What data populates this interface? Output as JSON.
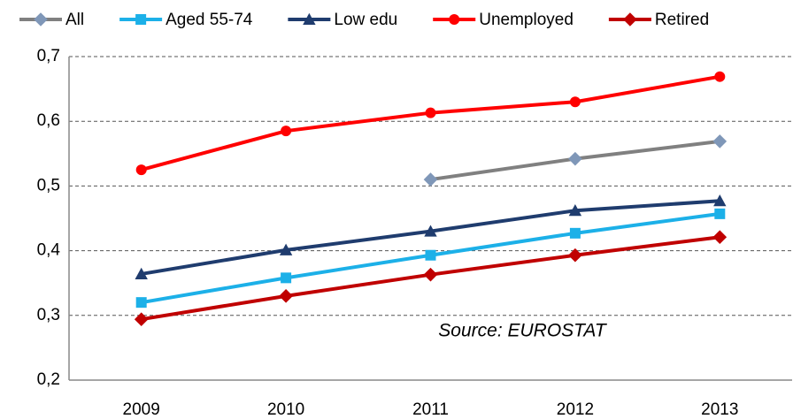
{
  "chart_data": {
    "type": "line",
    "categories": [
      "2009",
      "2010",
      "2011",
      "2012",
      "2013"
    ],
    "series": [
      {
        "name": "All",
        "color": "#808080",
        "marker": "diamond",
        "marker_color": "#7f97b8",
        "values": [
          null,
          null,
          0.51,
          0.542,
          0.569
        ]
      },
      {
        "name": "Aged 55-74",
        "color": "#1cb0e8",
        "marker": "square",
        "marker_color": "#1cb0e8",
        "values": [
          0.32,
          0.358,
          0.393,
          0.427,
          0.457
        ]
      },
      {
        "name": "Low edu",
        "color": "#1f3c6e",
        "marker": "triangle",
        "marker_color": "#1f3c6e",
        "values": [
          0.364,
          0.401,
          0.43,
          0.462,
          0.477
        ]
      },
      {
        "name": "Unemployed",
        "color": "#ff0000",
        "marker": "circle",
        "marker_color": "#ff0000",
        "values": [
          0.525,
          0.585,
          0.613,
          0.63,
          0.669
        ]
      },
      {
        "name": "Retired",
        "color": "#c00000",
        "marker": "diamond",
        "marker_color": "#c00000",
        "values": [
          0.294,
          0.33,
          0.363,
          0.393,
          0.421
        ]
      }
    ],
    "ylim": [
      0.2,
      0.7
    ],
    "yticks": [
      {
        "value": 0.2,
        "label": "0,2"
      },
      {
        "value": 0.3,
        "label": "0,3"
      },
      {
        "value": 0.4,
        "label": "0,4"
      },
      {
        "value": 0.5,
        "label": "0,5"
      },
      {
        "value": 0.6,
        "label": "0,6"
      },
      {
        "value": 0.7,
        "label": "0,7"
      }
    ],
    "grid": true,
    "legend": "top",
    "annotation": "Source: EUROSTAT"
  }
}
